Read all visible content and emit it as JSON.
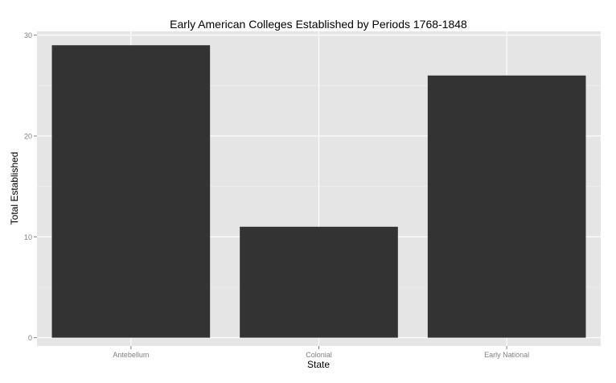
{
  "chart_data": {
    "type": "bar",
    "title": "Early American Colleges Established by Periods 1768-1848",
    "xlabel": "State",
    "ylabel": "Total Established",
    "categories": [
      "Antebellum",
      "Colonial",
      "Early National"
    ],
    "values": [
      29,
      11,
      26
    ],
    "ylim": [
      0,
      30
    ],
    "yticks": [
      0,
      10,
      20,
      30
    ],
    "grid": true,
    "legend": "none",
    "colors": {
      "panel_background": "#e5e5e5",
      "grid_major": "#ffffff",
      "grid_minor": "#f2f2f2",
      "bar_fill": "#333333",
      "tick_label": "#7f7f7f",
      "text": "#000000"
    }
  }
}
